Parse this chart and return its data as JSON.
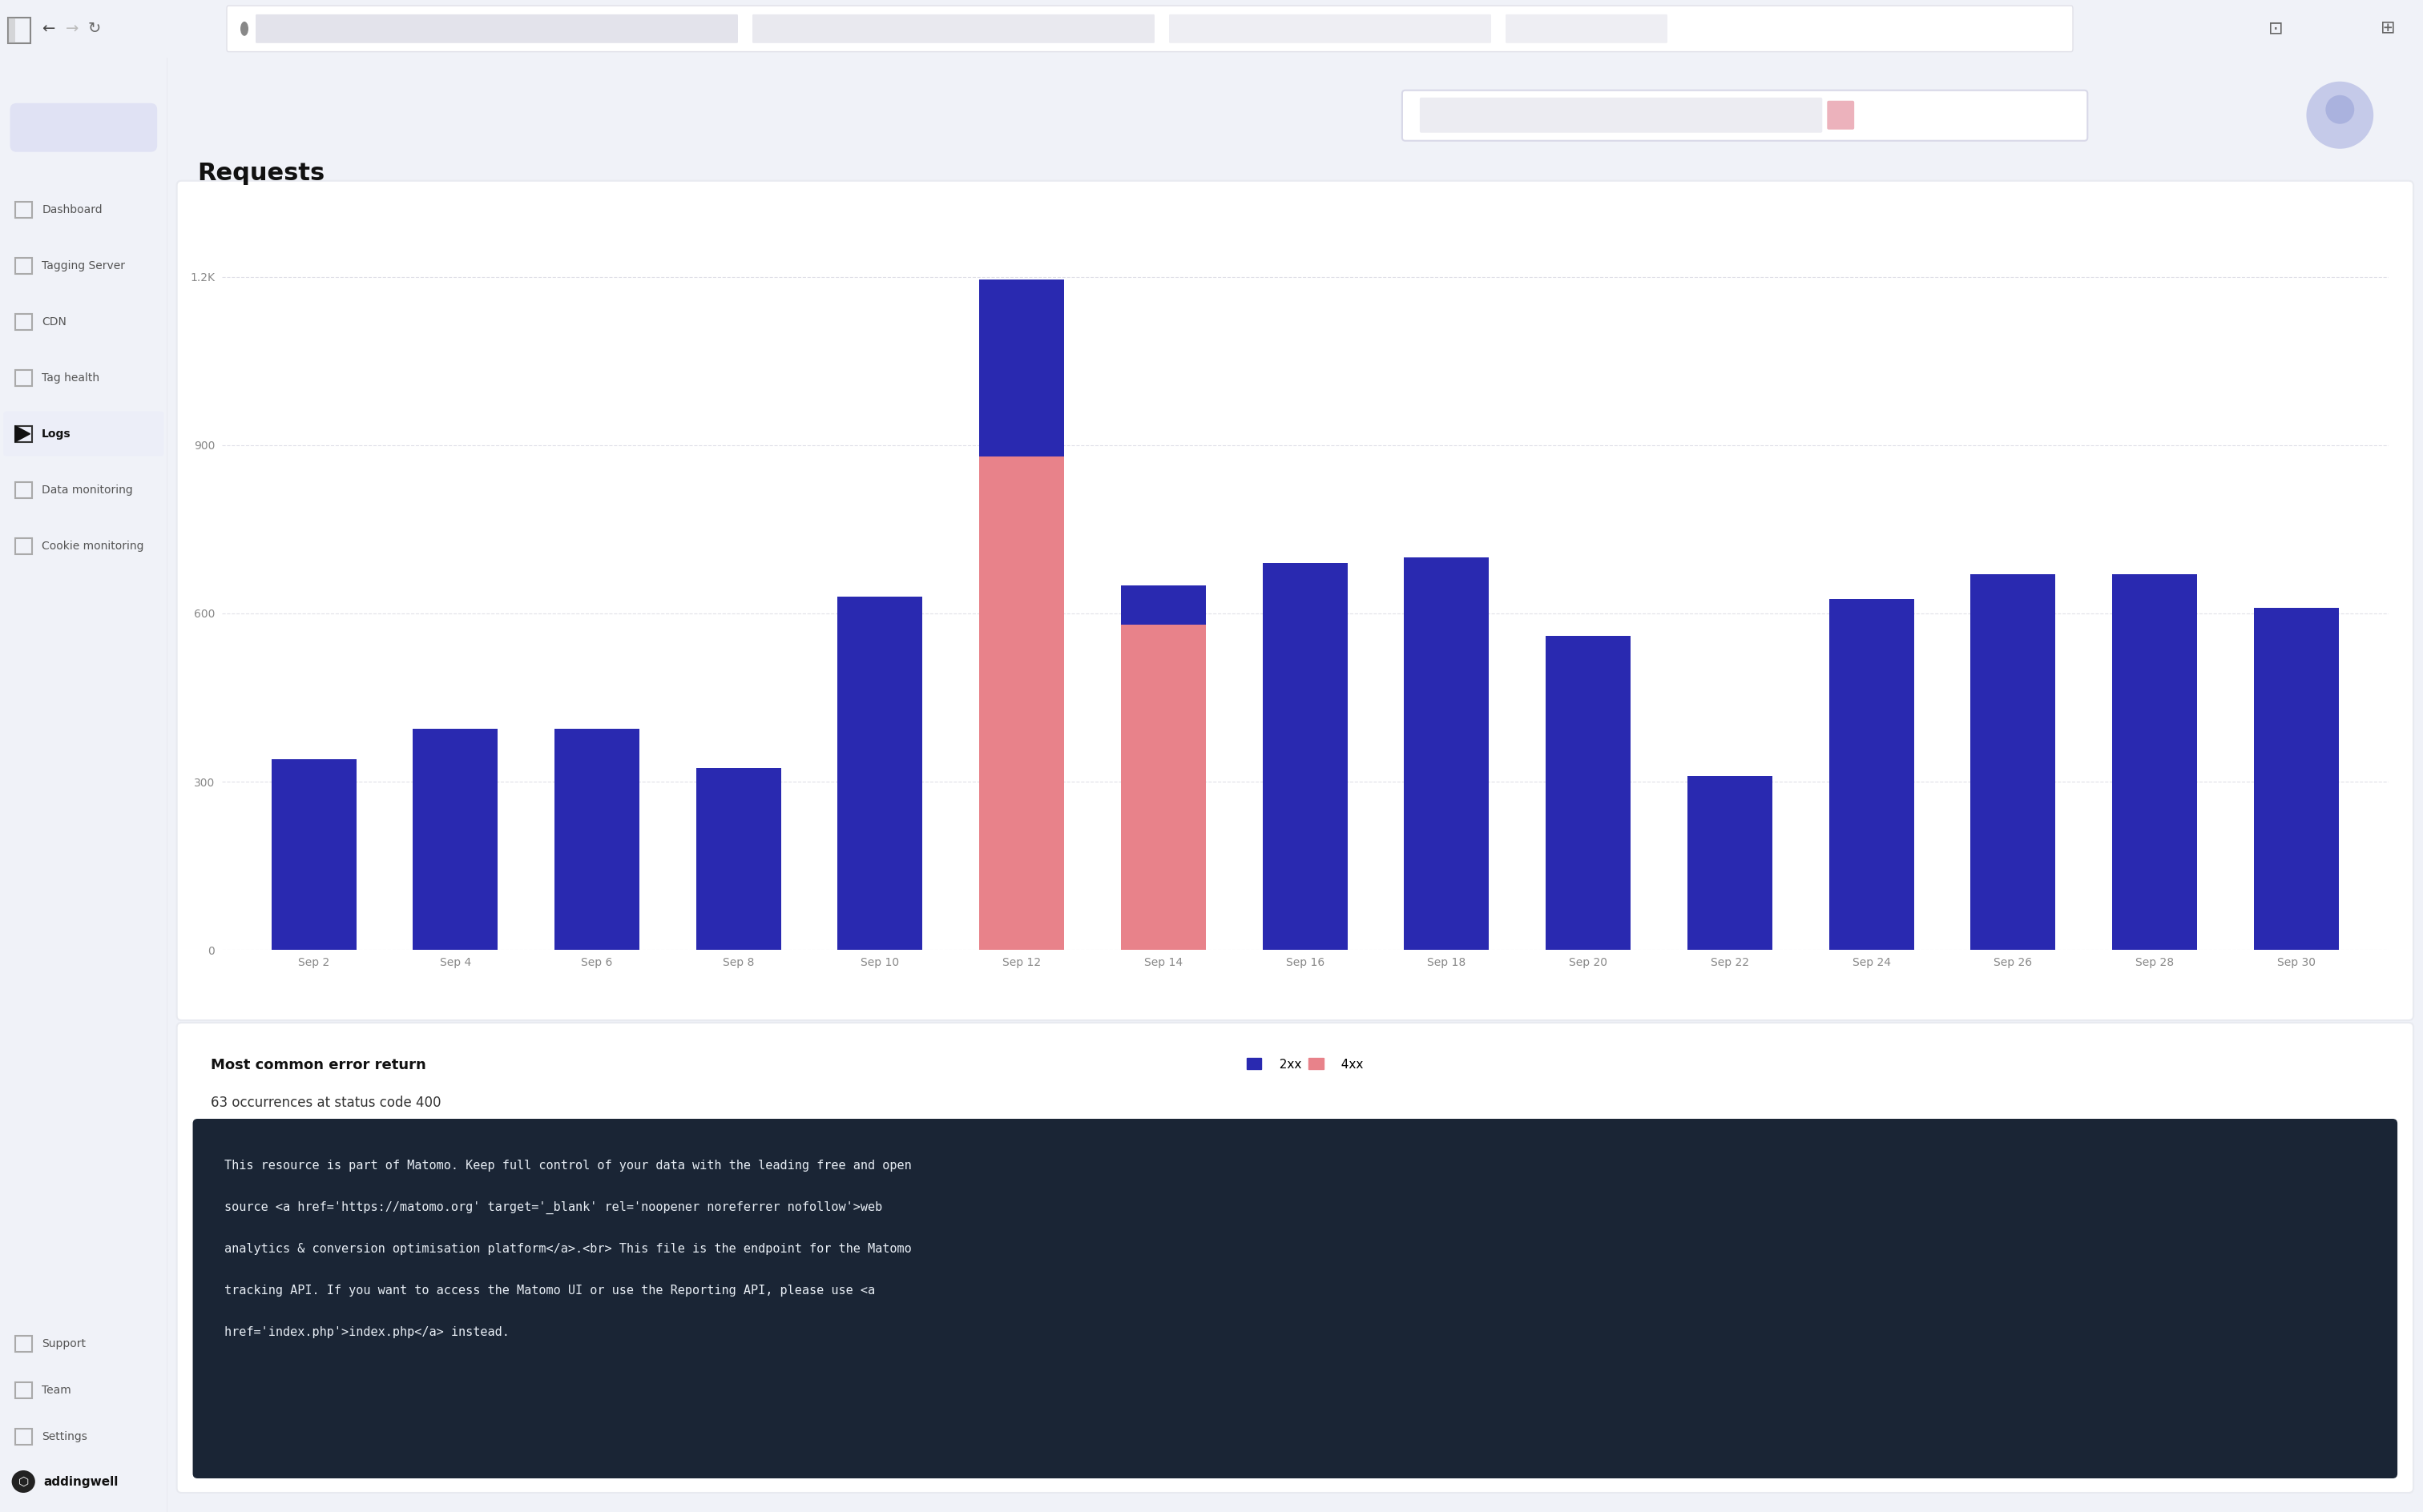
{
  "title": "Requests",
  "page_bg": "#f0f2f8",
  "sidebar_bg": "#ffffff",
  "bar_color_2xx": "#2929b0",
  "bar_color_4xx": "#e8828a",
  "x_labels": [
    "Sep 2",
    "Sep 4",
    "Sep 6",
    "Sep 8",
    "Sep 10",
    "Sep 12",
    "Sep 14",
    "Sep 16",
    "Sep 18",
    "Sep 20",
    "Sep 22",
    "Sep 24",
    "Sep 26",
    "Sep 28",
    "Sep 30"
  ],
  "values_2xx": [
    340,
    395,
    395,
    325,
    630,
    1195,
    650,
    690,
    700,
    560,
    310,
    625,
    670,
    670,
    610
  ],
  "values_4xx": [
    0,
    0,
    0,
    0,
    0,
    880,
    580,
    0,
    0,
    0,
    0,
    0,
    0,
    0,
    0
  ],
  "ytick_values": [
    0,
    300,
    600,
    900,
    1200
  ],
  "ytick_labels": [
    "0",
    "300",
    "600",
    "900",
    "1.2K"
  ],
  "ylim_max": 1300,
  "grid_color": "#e0e0e8",
  "legend_2xx": "2xx",
  "legend_4xx": "4xx",
  "sidebar_items": [
    "Dashboard",
    "Tagging Server",
    "CDN",
    "Tag health",
    "Logs",
    "Data monitoring",
    "Cookie monitoring"
  ],
  "sidebar_active": "Logs",
  "active_bg": "#eceef8",
  "error_section_title": "Most common error return",
  "error_occurrences": "63 occurrences at status code 400",
  "code_block_bg": "#1a2535",
  "code_block_lines": [
    "This resource is part of Matomo. Keep full control of your data with the leading free and open",
    "source <a href='https://matomo.org' target='_blank' rel='noopener noreferrer nofollow'>web",
    "analytics & conversion optimisation platform</a>.<br> This file is the endpoint for the Matomo",
    "tracking API. If you want to access the Matomo UI or use the Reporting API, please use <a",
    "href='index.php'>index.php</a> instead."
  ],
  "code_text_color": "#e8eef5",
  "bottom_links": [
    "Support",
    "Team",
    "Settings"
  ],
  "brand_name": "addingwell",
  "chrome_bg": "#f4f5f7",
  "chrome_border": "#e0e0e8",
  "sidebar_border": "#e8e8f0",
  "card_bg": "#ffffff",
  "card_border": "#e8eaf0"
}
